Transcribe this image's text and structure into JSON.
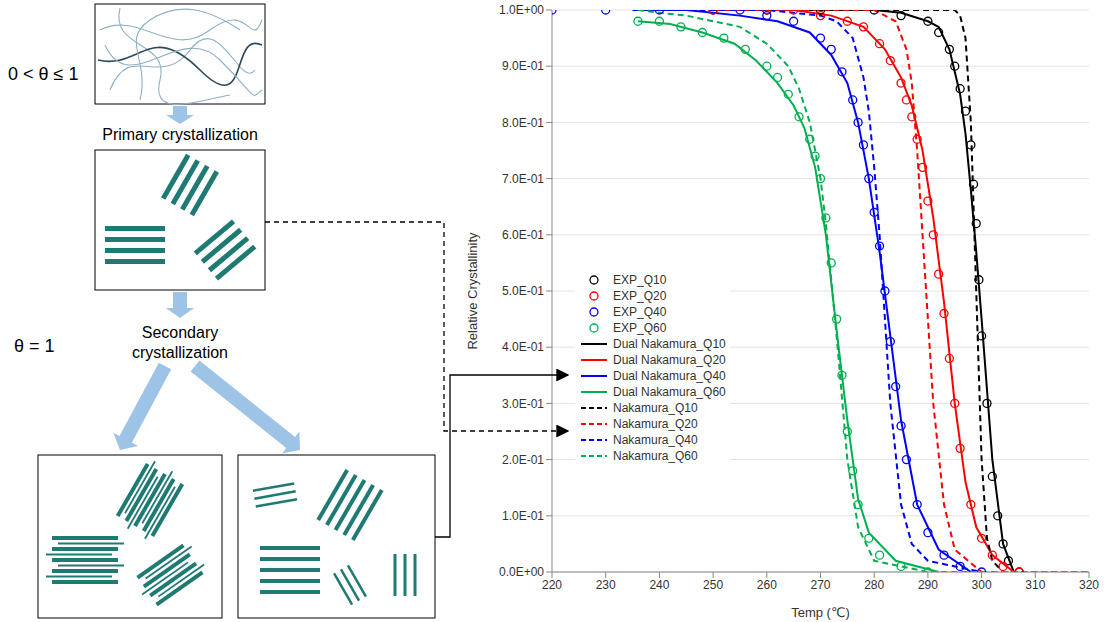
{
  "diagram": {
    "steps": [
      "Primary crystallization",
      "Secondary crystallization"
    ],
    "states": [
      "0 < θ ≤ 1",
      "θ = 1"
    ]
  },
  "chart_data": {
    "type": "line",
    "x_label": "Temp (℃)",
    "y_label": "Relative Crystallinity",
    "xlim": [
      220,
      320
    ],
    "xticks": [
      220,
      230,
      240,
      250,
      260,
      270,
      280,
      290,
      300,
      310,
      320
    ],
    "ylim": [
      0,
      1
    ],
    "yticks": [
      {
        "value": 0,
        "label": "0.0E+00"
      },
      {
        "value": 0.1,
        "label": "1.0E-01"
      },
      {
        "value": 0.2,
        "label": "2.0E-01"
      },
      {
        "value": 0.3,
        "label": "3.0E-01"
      },
      {
        "value": 0.4,
        "label": "4.0E-01"
      },
      {
        "value": 0.5,
        "label": "5.0E-01"
      },
      {
        "value": 0.6,
        "label": "6.0E-01"
      },
      {
        "value": 0.7,
        "label": "7.0E-01"
      },
      {
        "value": 0.8,
        "label": "8.0E-01"
      },
      {
        "value": 0.9,
        "label": "9.0E-01"
      },
      {
        "value": 1,
        "label": "1.0E+00"
      }
    ],
    "grid": true,
    "legend": "left",
    "series": [
      {
        "name": "EXP_Q10",
        "type": "scatter",
        "marker": "circle",
        "color": "#000000",
        "x": [
          250,
          260,
          270,
          280,
          285,
          290,
          292,
          294,
          295,
          296,
          297,
          298,
          298.5,
          299,
          299.5,
          300,
          301,
          302,
          303,
          304,
          305,
          307
        ],
        "values": [
          1,
          1,
          1,
          1,
          0.99,
          0.98,
          0.96,
          0.93,
          0.9,
          0.86,
          0.82,
          0.76,
          0.69,
          0.62,
          0.52,
          0.42,
          0.3,
          0.17,
          0.1,
          0.05,
          0.02,
          0
        ]
      },
      {
        "name": "EXP_Q20",
        "type": "scatter",
        "marker": "circle",
        "color": "#ff0000",
        "x": [
          250,
          260,
          265,
          270,
          275,
          278,
          281,
          283,
          285,
          286,
          287,
          288,
          289,
          290,
          291,
          292,
          293,
          294,
          295,
          296,
          298,
          300,
          302,
          304,
          307
        ],
        "values": [
          1,
          1,
          1,
          0.99,
          0.98,
          0.97,
          0.94,
          0.91,
          0.87,
          0.84,
          0.81,
          0.77,
          0.72,
          0.66,
          0.6,
          0.53,
          0.46,
          0.38,
          0.3,
          0.22,
          0.12,
          0.06,
          0.03,
          0.01,
          0
        ]
      },
      {
        "name": "EXP_Q40",
        "type": "scatter",
        "marker": "circle",
        "color": "#0000ff",
        "x": [
          220,
          230,
          240,
          255,
          260,
          265,
          270,
          272,
          274,
          276,
          277,
          278,
          279,
          280,
          281,
          282,
          283,
          284,
          285,
          286,
          288,
          290,
          293,
          296,
          300
        ],
        "values": [
          1,
          1,
          1,
          1,
          0.99,
          0.98,
          0.95,
          0.93,
          0.89,
          0.84,
          0.8,
          0.76,
          0.7,
          0.64,
          0.58,
          0.5,
          0.41,
          0.33,
          0.26,
          0.2,
          0.12,
          0.07,
          0.03,
          0.01,
          0
        ]
      },
      {
        "name": "EXP_Q60",
        "type": "scatter",
        "marker": "circle",
        "color": "#00b050",
        "x": [
          236,
          240,
          244,
          248,
          252,
          256,
          260,
          262,
          264,
          266,
          268,
          269,
          270,
          271,
          272,
          273,
          274,
          275,
          276,
          277,
          279,
          281,
          285,
          290
        ],
        "values": [
          0.98,
          0.98,
          0.97,
          0.96,
          0.95,
          0.93,
          0.9,
          0.88,
          0.85,
          0.81,
          0.77,
          0.74,
          0.7,
          0.63,
          0.55,
          0.45,
          0.35,
          0.25,
          0.18,
          0.12,
          0.06,
          0.03,
          0.01,
          0
        ]
      },
      {
        "name": "Dual Nakamura_Q10",
        "type": "line",
        "line_style": "solid",
        "color": "#000000",
        "x": [
          250,
          260,
          280,
          285,
          290,
          292,
          294,
          296,
          297,
          298,
          299,
          300,
          302,
          304,
          306
        ],
        "values": [
          1,
          1,
          1,
          0.995,
          0.98,
          0.97,
          0.93,
          0.85,
          0.78,
          0.68,
          0.57,
          0.45,
          0.2,
          0.05,
          0
        ]
      },
      {
        "name": "Dual Nakamura_Q20",
        "type": "line",
        "line_style": "solid",
        "color": "#ff0000",
        "x": [
          250,
          265,
          272,
          278,
          282,
          285,
          287,
          289,
          291,
          293,
          295,
          297,
          299,
          302,
          306
        ],
        "values": [
          1,
          1,
          0.99,
          0.97,
          0.93,
          0.88,
          0.83,
          0.75,
          0.63,
          0.48,
          0.3,
          0.16,
          0.08,
          0.03,
          0
        ]
      },
      {
        "name": "Dual Nakamura_Q40",
        "type": "line",
        "line_style": "solid",
        "color": "#0000ff",
        "x": [
          235,
          245,
          255,
          262,
          268,
          272,
          275,
          277,
          279,
          281,
          283,
          285,
          288,
          292,
          298
        ],
        "values": [
          1,
          1,
          0.99,
          0.98,
          0.96,
          0.92,
          0.87,
          0.8,
          0.7,
          0.57,
          0.42,
          0.27,
          0.12,
          0.04,
          0
        ]
      },
      {
        "name": "Dual Nakamura_Q60",
        "type": "line",
        "line_style": "solid",
        "color": "#00b050",
        "x": [
          236,
          242,
          248,
          254,
          258,
          262,
          265,
          267,
          269,
          271,
          273,
          275,
          277,
          279,
          284,
          292
        ],
        "values": [
          0.98,
          0.975,
          0.96,
          0.94,
          0.91,
          0.87,
          0.83,
          0.79,
          0.72,
          0.6,
          0.43,
          0.27,
          0.13,
          0.07,
          0.02,
          0
        ]
      },
      {
        "name": "Nakamura_Q10",
        "type": "line",
        "line_style": "dashed",
        "color": "#000000",
        "x": [
          250,
          295,
          296,
          297,
          298,
          299,
          300,
          301,
          302,
          304,
          310,
          320
        ],
        "values": [
          1,
          1,
          0.99,
          0.95,
          0.8,
          0.5,
          0.2,
          0.06,
          0.02,
          0,
          0,
          0
        ]
      },
      {
        "name": "Nakamura_Q20",
        "type": "line",
        "line_style": "dashed",
        "color": "#ff0000",
        "x": [
          250,
          280,
          284,
          286,
          287,
          288,
          289,
          290,
          291,
          293,
          295,
          300
        ],
        "values": [
          1,
          1,
          0.98,
          0.93,
          0.87,
          0.75,
          0.6,
          0.45,
          0.3,
          0.12,
          0.04,
          0
        ]
      },
      {
        "name": "Nakamura_Q40",
        "type": "line",
        "line_style": "dashed",
        "color": "#0000ff",
        "x": [
          240,
          260,
          270,
          273,
          276,
          278,
          279,
          280,
          281,
          282,
          283,
          285,
          287,
          290,
          300,
          320
        ],
        "values": [
          1,
          1,
          0.99,
          0.98,
          0.95,
          0.88,
          0.82,
          0.72,
          0.6,
          0.45,
          0.3,
          0.12,
          0.05,
          0.02,
          0,
          0
        ]
      },
      {
        "name": "Nakamura_Q60",
        "type": "line",
        "line_style": "dashed",
        "color": "#00b050",
        "x": [
          236,
          240,
          245,
          250,
          255,
          260,
          264,
          266,
          268,
          270,
          271,
          273,
          275,
          277,
          280,
          290,
          320
        ],
        "values": [
          1,
          0.995,
          0.99,
          0.98,
          0.97,
          0.94,
          0.9,
          0.86,
          0.8,
          0.7,
          0.62,
          0.42,
          0.2,
          0.08,
          0.02,
          0,
          0
        ]
      }
    ]
  }
}
